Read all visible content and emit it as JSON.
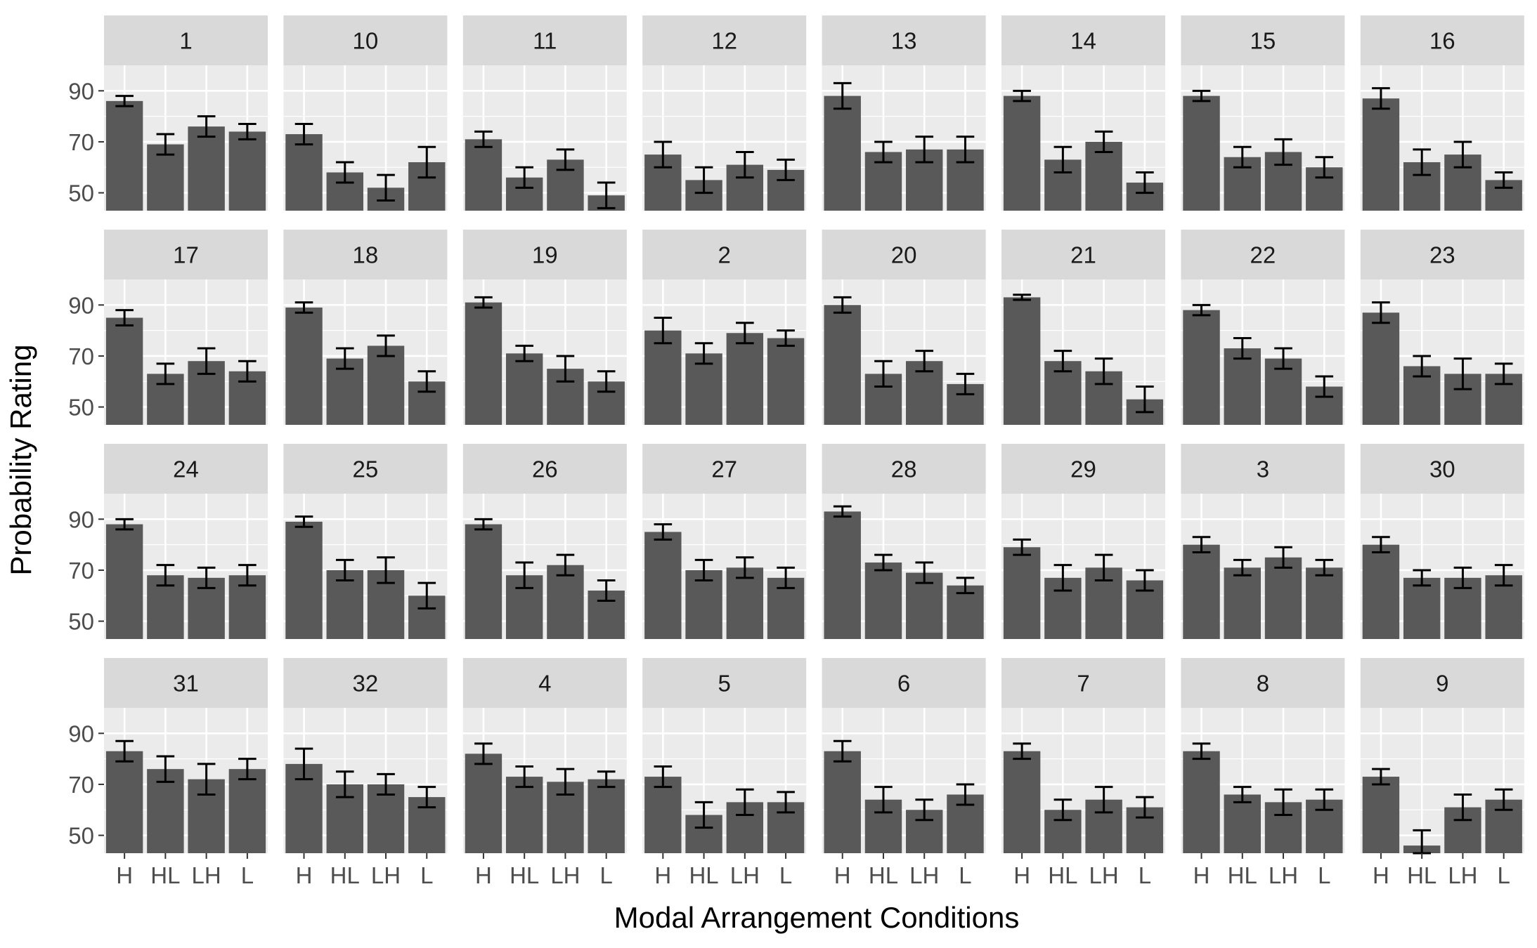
{
  "chart_data": {
    "type": "bar",
    "facet_type": "wrap",
    "xlabel": "Modal Arrangement Conditions",
    "ylabel": "Probability Rating",
    "categories": [
      "H",
      "HL",
      "LH",
      "L"
    ],
    "y_ticks": [
      50,
      70,
      90
    ],
    "ylim": [
      43,
      100
    ],
    "grid": true,
    "error_bars": true,
    "colors": {
      "bar": "#595959",
      "panel_bg": "#ebebeb",
      "strip_bg": "#d9d9d9",
      "grid": "#ffffff",
      "error_bar": "#000000"
    },
    "panels": [
      {
        "label": "1",
        "values": [
          86,
          69,
          76,
          74
        ],
        "errors": [
          2,
          4,
          4,
          3
        ]
      },
      {
        "label": "10",
        "values": [
          73,
          58,
          52,
          62
        ],
        "errors": [
          4,
          4,
          5,
          6
        ]
      },
      {
        "label": "11",
        "values": [
          71,
          56,
          63,
          49
        ],
        "errors": [
          3,
          4,
          4,
          5
        ]
      },
      {
        "label": "12",
        "values": [
          65,
          55,
          61,
          59
        ],
        "errors": [
          5,
          5,
          5,
          4
        ]
      },
      {
        "label": "13",
        "values": [
          88,
          66,
          67,
          67
        ],
        "errors": [
          5,
          4,
          5,
          5
        ]
      },
      {
        "label": "14",
        "values": [
          88,
          63,
          70,
          54
        ],
        "errors": [
          2,
          5,
          4,
          4
        ]
      },
      {
        "label": "15",
        "values": [
          88,
          64,
          66,
          60
        ],
        "errors": [
          2,
          4,
          5,
          4
        ]
      },
      {
        "label": "16",
        "values": [
          87,
          62,
          65,
          55
        ],
        "errors": [
          4,
          5,
          5,
          3
        ]
      },
      {
        "label": "17",
        "values": [
          85,
          63,
          68,
          64
        ],
        "errors": [
          3,
          4,
          5,
          4
        ]
      },
      {
        "label": "18",
        "values": [
          89,
          69,
          74,
          60
        ],
        "errors": [
          2,
          4,
          4,
          4
        ]
      },
      {
        "label": "19",
        "values": [
          91,
          71,
          65,
          60
        ],
        "errors": [
          2,
          3,
          5,
          4
        ]
      },
      {
        "label": "2",
        "values": [
          80,
          71,
          79,
          77
        ],
        "errors": [
          5,
          4,
          4,
          3
        ]
      },
      {
        "label": "20",
        "values": [
          90,
          63,
          68,
          59
        ],
        "errors": [
          3,
          5,
          4,
          4
        ]
      },
      {
        "label": "21",
        "values": [
          93,
          68,
          64,
          53
        ],
        "errors": [
          1,
          4,
          5,
          5
        ]
      },
      {
        "label": "22",
        "values": [
          88,
          73,
          69,
          58
        ],
        "errors": [
          2,
          4,
          4,
          4
        ]
      },
      {
        "label": "23",
        "values": [
          87,
          66,
          63,
          63
        ],
        "errors": [
          4,
          4,
          6,
          4
        ]
      },
      {
        "label": "24",
        "values": [
          88,
          68,
          67,
          68
        ],
        "errors": [
          2,
          4,
          4,
          4
        ]
      },
      {
        "label": "25",
        "values": [
          89,
          70,
          70,
          60
        ],
        "errors": [
          2,
          4,
          5,
          5
        ]
      },
      {
        "label": "26",
        "values": [
          88,
          68,
          72,
          62
        ],
        "errors": [
          2,
          5,
          4,
          4
        ]
      },
      {
        "label": "27",
        "values": [
          85,
          70,
          71,
          67
        ],
        "errors": [
          3,
          4,
          4,
          4
        ]
      },
      {
        "label": "28",
        "values": [
          93,
          73,
          69,
          64
        ],
        "errors": [
          2,
          3,
          4,
          3
        ]
      },
      {
        "label": "29",
        "values": [
          79,
          67,
          71,
          66
        ],
        "errors": [
          3,
          5,
          5,
          4
        ]
      },
      {
        "label": "3",
        "values": [
          80,
          71,
          75,
          71
        ],
        "errors": [
          3,
          3,
          4,
          3
        ]
      },
      {
        "label": "30",
        "values": [
          80,
          67,
          67,
          68
        ],
        "errors": [
          3,
          3,
          4,
          4
        ]
      },
      {
        "label": "31",
        "values": [
          83,
          76,
          72,
          76
        ],
        "errors": [
          4,
          5,
          6,
          4
        ]
      },
      {
        "label": "32",
        "values": [
          78,
          70,
          70,
          65
        ],
        "errors": [
          6,
          5,
          4,
          4
        ]
      },
      {
        "label": "4",
        "values": [
          82,
          73,
          71,
          72
        ],
        "errors": [
          4,
          4,
          5,
          3
        ]
      },
      {
        "label": "5",
        "values": [
          73,
          58,
          63,
          63
        ],
        "errors": [
          4,
          5,
          5,
          4
        ]
      },
      {
        "label": "6",
        "values": [
          83,
          64,
          60,
          66
        ],
        "errors": [
          4,
          5,
          4,
          4
        ]
      },
      {
        "label": "7",
        "values": [
          83,
          60,
          64,
          61
        ],
        "errors": [
          3,
          4,
          5,
          4
        ]
      },
      {
        "label": "8",
        "values": [
          83,
          66,
          63,
          64
        ],
        "errors": [
          3,
          3,
          5,
          4
        ]
      },
      {
        "label": "9",
        "values": [
          73,
          46,
          61,
          64
        ],
        "errors": [
          3,
          6,
          5,
          4
        ]
      }
    ]
  }
}
